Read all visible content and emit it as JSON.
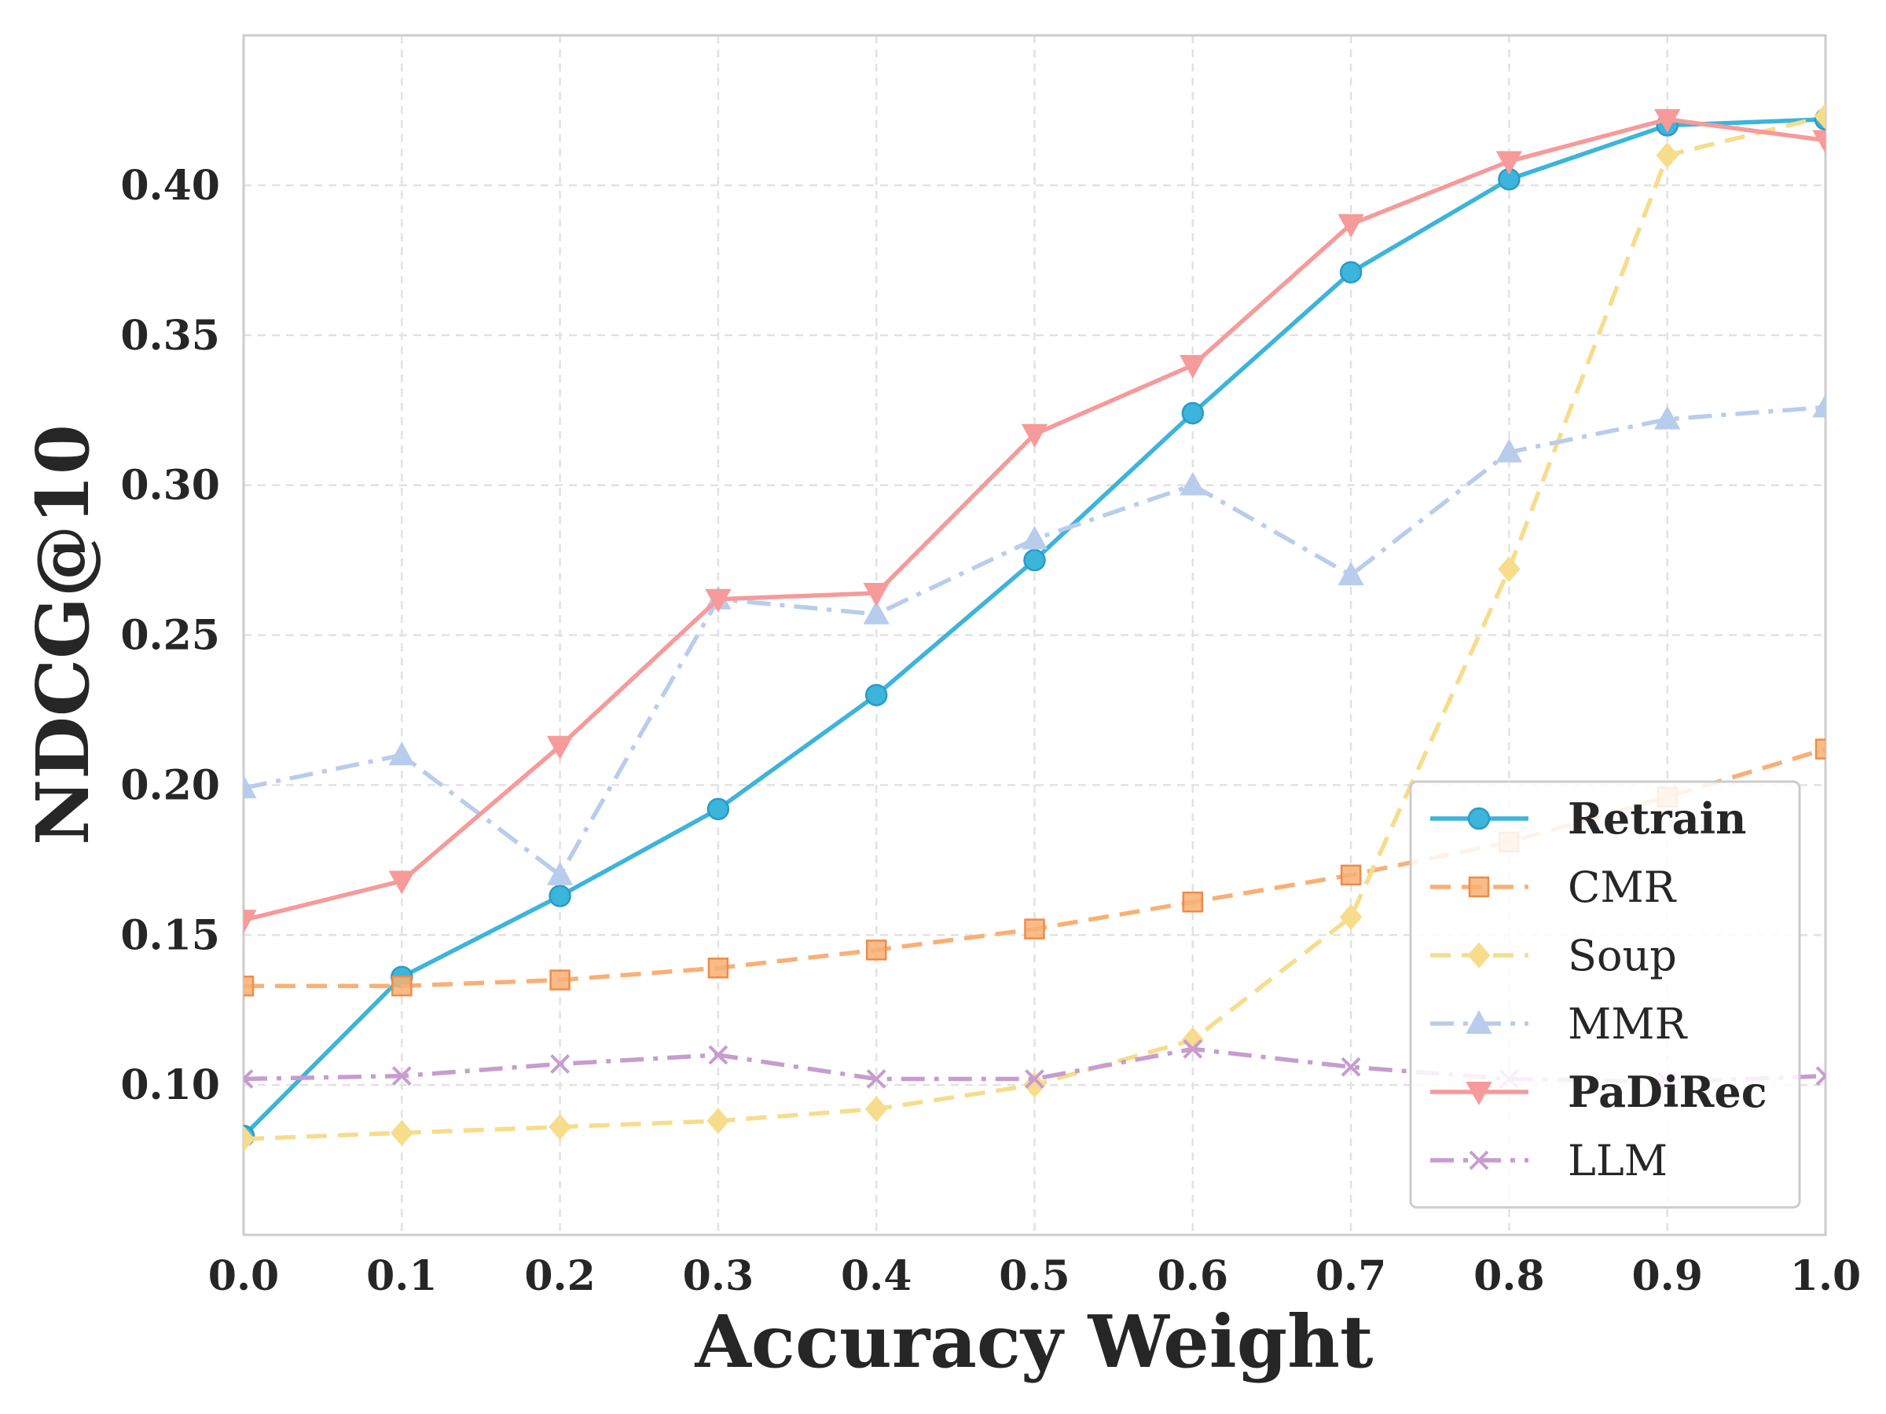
{
  "chart_data": {
    "type": "line",
    "title": "",
    "xlabel": "Accuracy Weight",
    "ylabel": "NDCG@10",
    "xlim": [
      0.0,
      1.0
    ],
    "ylim": [
      0.05,
      0.45
    ],
    "grid": true,
    "legend_position": "lower-right",
    "x": [
      0.0,
      0.1,
      0.2,
      0.3,
      0.4,
      0.5,
      0.6,
      0.7,
      0.8,
      0.9,
      1.0
    ],
    "x_tick_labels": [
      "0.0",
      "0.1",
      "0.2",
      "0.3",
      "0.4",
      "0.5",
      "0.6",
      "0.7",
      "0.8",
      "0.9",
      "1.0"
    ],
    "y_ticks": [
      0.1,
      0.15,
      0.2,
      0.25,
      0.3,
      0.35,
      0.4
    ],
    "y_tick_labels": [
      "0.10",
      "0.15",
      "0.20",
      "0.25",
      "0.30",
      "0.35",
      "0.40"
    ],
    "series": [
      {
        "name": "Retrain",
        "bold": true,
        "color": "#3cb4dc",
        "dash": "solid",
        "marker": "circle",
        "values": [
          0.083,
          0.136,
          0.163,
          0.192,
          0.23,
          0.275,
          0.324,
          0.371,
          0.402,
          0.42,
          0.422
        ]
      },
      {
        "name": "CMR",
        "bold": false,
        "color": "#f8b074",
        "dash": "dashed",
        "marker": "square",
        "values": [
          0.133,
          0.133,
          0.135,
          0.139,
          0.145,
          0.152,
          0.161,
          0.17,
          0.181,
          0.196,
          0.212
        ]
      },
      {
        "name": "Soup",
        "bold": false,
        "color": "#f7dc8c",
        "dash": "dashed",
        "marker": "diamond",
        "values": [
          0.082,
          0.084,
          0.086,
          0.088,
          0.092,
          0.1,
          0.115,
          0.156,
          0.272,
          0.41,
          0.423
        ]
      },
      {
        "name": "MMR",
        "bold": false,
        "color": "#b8cdec",
        "dash": "dashdot",
        "marker": "triangle-up",
        "values": [
          0.199,
          0.21,
          0.17,
          0.262,
          0.257,
          0.282,
          0.3,
          0.27,
          0.311,
          0.322,
          0.326
        ]
      },
      {
        "name": "PaDiRec",
        "bold": true,
        "color": "#f79a9a",
        "dash": "solid",
        "marker": "triangle-down",
        "values": [
          0.155,
          0.168,
          0.213,
          0.262,
          0.264,
          0.317,
          0.34,
          0.387,
          0.408,
          0.422,
          0.415
        ]
      },
      {
        "name": "LLM",
        "bold": false,
        "color": "#c79ccf",
        "dash": "dashdot",
        "marker": "x",
        "values": [
          0.102,
          0.103,
          0.107,
          0.11,
          0.102,
          0.102,
          0.112,
          0.106,
          0.102,
          0.101,
          0.103
        ]
      }
    ]
  }
}
